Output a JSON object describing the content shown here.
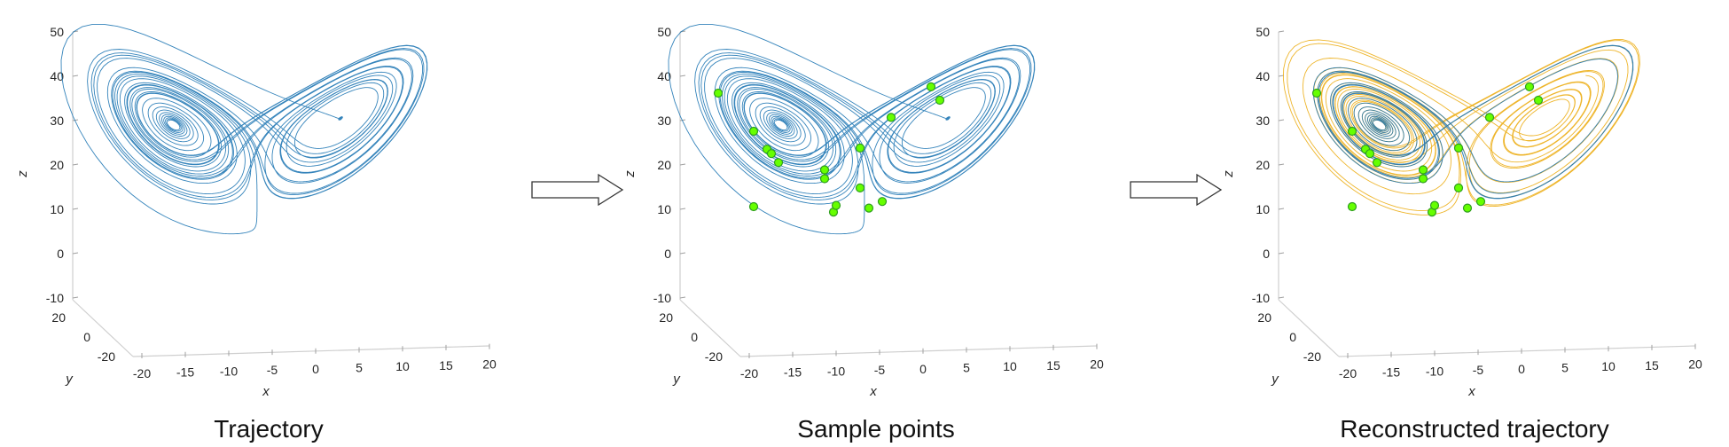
{
  "panels": [
    {
      "caption": "Trajectory",
      "show_recon": false,
      "show_points": false
    },
    {
      "caption": "Sample points",
      "show_recon": false,
      "show_points": true
    },
    {
      "caption": "Reconstructed trajectory",
      "show_recon": true,
      "show_points": true
    }
  ],
  "axes": {
    "x_label": "x",
    "y_label": "y",
    "z_label": "z",
    "x_ticks": [
      "-20",
      "-15",
      "-10",
      "-5",
      "0",
      "5",
      "10",
      "15",
      "20"
    ],
    "y_ticks": [
      "20",
      "0",
      "-20"
    ],
    "z_ticks": [
      "50",
      "40",
      "30",
      "20",
      "10",
      "0",
      "-10"
    ],
    "xlim": [
      -20,
      20
    ],
    "ylim": [
      -20,
      20
    ],
    "zlim": [
      -10,
      50
    ]
  },
  "sample_points": [
    [
      -16.5,
      33
    ],
    [
      -12.5,
      24.5
    ],
    [
      -11,
      20.5
    ],
    [
      -10.5,
      19.5
    ],
    [
      -9.7,
      17.5
    ],
    [
      -12.5,
      7.5
    ],
    [
      -4.5,
      16
    ],
    [
      -4.5,
      14
    ],
    [
      -3.5,
      6.5
    ],
    [
      -3.2,
      8
    ],
    [
      -0.5,
      21
    ],
    [
      -0.5,
      12
    ],
    [
      0.5,
      7.5
    ],
    [
      2,
      9
    ],
    [
      3,
      28
    ],
    [
      7.5,
      35
    ],
    [
      8.5,
      32
    ]
  ],
  "colors": {
    "trajectory": "#1f77b4",
    "reconstruction": "#edb120",
    "points_fill": "#66ff00",
    "points_edge": "#2e9e1e",
    "arrow": "#333333",
    "box": "#cfcfcf"
  }
}
